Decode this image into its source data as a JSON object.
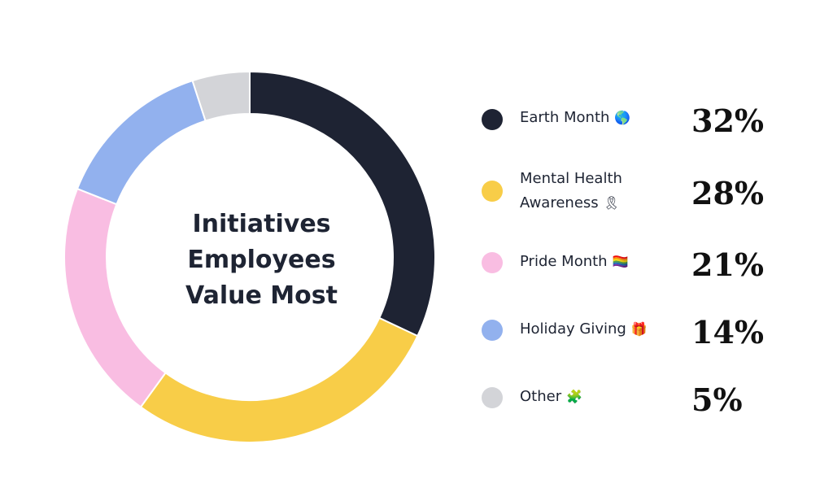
{
  "chart_data": {
    "type": "pie",
    "variant": "donut",
    "title_lines": [
      "Initiatives",
      "Employees",
      "Value Most"
    ],
    "legend_position": "right",
    "slices": [
      {
        "label": "Earth Month",
        "emoji": "🌎",
        "value": 32,
        "value_label": "32%",
        "color": "#1e2333"
      },
      {
        "label_lines": [
          "Mental Health",
          "Awareness"
        ],
        "emoji": "🎗",
        "value": 28,
        "value_label": "28%",
        "color": "#f8cd48"
      },
      {
        "label": "Pride Month",
        "emoji": "🏳️‍🌈",
        "value": 21,
        "value_label": "21%",
        "color": "#f9bde2"
      },
      {
        "label": "Holiday Giving",
        "emoji": "🎁",
        "value": 14,
        "value_label": "14%",
        "color": "#92b1ee"
      },
      {
        "label": "Other",
        "emoji": "🧩",
        "value": 5,
        "value_label": "5%",
        "color": "#d3d4d8"
      }
    ]
  }
}
